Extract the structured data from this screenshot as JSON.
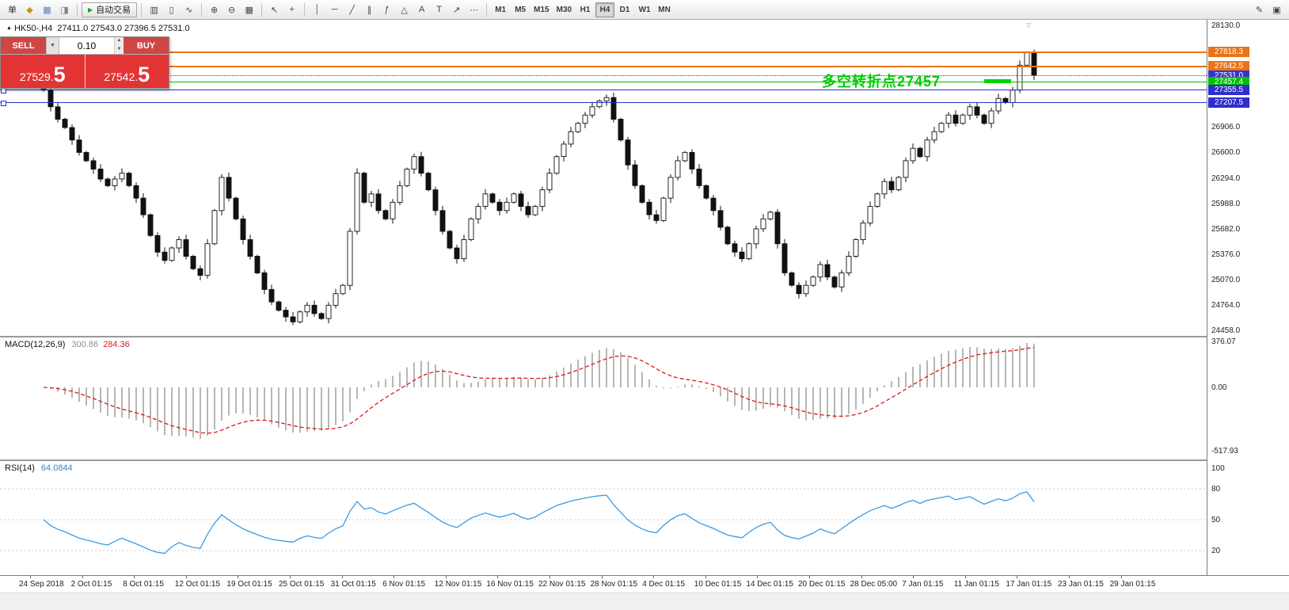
{
  "toolbar": {
    "icon_groups": [
      [
        {
          "n": "new-order-button",
          "g": "单",
          "c": "#333333"
        },
        {
          "n": "charts-window-icon",
          "g": "◆",
          "c": "#c8961e"
        },
        {
          "n": "profiles-icon",
          "g": "▦",
          "c": "#5b7fb4"
        },
        {
          "n": "navigator-icon",
          "g": "◨",
          "c": "#808080"
        }
      ],
      [
        {
          "n": "autotrading-button",
          "g": "▶",
          "c": "#18a018",
          "label": "自动交易"
        }
      ],
      [
        {
          "n": "bar-chart-icon",
          "g": "▥"
        },
        {
          "n": "candlestick-chart-icon",
          "g": "▯"
        },
        {
          "n": "line-chart-icon",
          "g": "∿"
        }
      ],
      [
        {
          "n": "zoom-in-button",
          "g": "⊕"
        },
        {
          "n": "zoom-out-button",
          "g": "⊖"
        },
        {
          "n": "tile-windows-icon",
          "g": "▦"
        }
      ],
      [
        {
          "n": "cursor-icon",
          "g": "↖"
        },
        {
          "n": "crosshair-icon",
          "g": "+"
        }
      ],
      [
        {
          "n": "vertical-line-icon",
          "g": "│"
        },
        {
          "n": "horizontal-line-icon",
          "g": "─"
        },
        {
          "n": "trendline-icon",
          "g": "╱"
        },
        {
          "n": "equidistant-channel-icon",
          "g": "∥"
        },
        {
          "n": "fibonacci-icon",
          "g": "ƒ"
        },
        {
          "n": "shapes-icon",
          "g": "△"
        },
        {
          "n": "text-icon",
          "g": "A"
        },
        {
          "n": "text-label-icon",
          "g": "T"
        },
        {
          "n": "arrows-icon",
          "g": "↗"
        },
        {
          "n": "more-tools-icon",
          "g": "⋯"
        }
      ]
    ],
    "timeframes": [
      "M1",
      "M5",
      "M15",
      "M30",
      "H1",
      "H4",
      "D1",
      "W1",
      "MN"
    ],
    "active_timeframe": "H4",
    "right_icons": [
      {
        "n": "edit-pencil-icon",
        "g": "✎"
      },
      {
        "n": "window-layout-icon",
        "g": "▣"
      }
    ]
  },
  "chart": {
    "header": {
      "marker": "▲",
      "title": "HK50-,H4",
      "values": "27411.0 27543.0 27396.5 27531.0"
    },
    "annotation": {
      "text": "多空转折点27457",
      "color": "#00cc00"
    },
    "shift_marker": "▽",
    "levels": [
      {
        "p": 27818.3,
        "t": "27818.3",
        "color": "#e8731a",
        "style": "solid",
        "w": 2
      },
      {
        "p": 27642.5,
        "t": "27642.5",
        "color": "#e8731a",
        "style": "solid",
        "w": 2
      },
      {
        "p": 27531.0,
        "t": "27531.0",
        "color": "#3535cd",
        "style": "dotted"
      },
      {
        "p": 27457.4,
        "t": "27457.4",
        "color": "#00c000",
        "style": "solid",
        "w": 1
      },
      {
        "p": 27355.5,
        "t": "27355.5",
        "color": "#2e2ecb",
        "style": "solid",
        "w": 1,
        "handles": true
      },
      {
        "p": 27207.5,
        "t": "27207.5",
        "color": "#2e2ecb",
        "style": "solid",
        "w": 1,
        "handles": true
      }
    ],
    "y_axis_labels": [
      {
        "p": 28130,
        "t": "28130.0"
      },
      {
        "p": 26906,
        "t": "26906.0"
      },
      {
        "p": 26600,
        "t": "26600.0"
      },
      {
        "p": 26294,
        "t": "26294.0"
      },
      {
        "p": 25988,
        "t": "25988.0"
      },
      {
        "p": 25682,
        "t": "25682.0"
      },
      {
        "p": 25376,
        "t": "25376.0"
      },
      {
        "p": 25070,
        "t": "25070.0"
      },
      {
        "p": 24764,
        "t": "24764.0"
      },
      {
        "p": 24458,
        "t": "24458.0"
      }
    ]
  },
  "trade_widget": {
    "sell_label": "SELL",
    "buy_label": "BUY",
    "volume": "0.10",
    "caret_icon": "▼",
    "spin_up_icon": "▲",
    "spin_down_icon": "▼",
    "sell_price": "27529.",
    "sell_price_frac": "5",
    "buy_price": "27542.",
    "buy_price_frac": "5"
  },
  "macd": {
    "title": "MACD(12,26,9)",
    "value1": "300.86",
    "value2": "284.36",
    "axis": [
      {
        "v": 376.07,
        "label": "376.07"
      },
      {
        "v": 0,
        "label": "0.00"
      },
      {
        "v": -517.93,
        "label": "-517.93"
      }
    ]
  },
  "rsi": {
    "title": "RSI(14)",
    "value": "64.0844",
    "axis": [
      {
        "v": 100,
        "label": "100"
      },
      {
        "v": 80,
        "label": "80"
      },
      {
        "v": 50,
        "label": "50"
      },
      {
        "v": 20,
        "label": "20"
      }
    ],
    "levels": [
      80,
      50,
      20
    ]
  },
  "chart_data": {
    "type": "candlestick",
    "symbol": "HK50-",
    "timeframe": "H4",
    "ohlc_last": {
      "open": 27411.0,
      "high": 27543.0,
      "low": 27396.5,
      "close": 27531.0
    },
    "y_range": [
      24458,
      28130
    ],
    "closes": [
      27350,
      27150,
      27000,
      26900,
      26750,
      26600,
      26500,
      26400,
      26280,
      26200,
      26280,
      26350,
      26200,
      26050,
      25850,
      25600,
      25400,
      25300,
      25450,
      25550,
      25350,
      25200,
      25120,
      25500,
      25900,
      26300,
      26050,
      25800,
      25550,
      25350,
      25150,
      24950,
      24800,
      24700,
      24620,
      24560,
      24680,
      24760,
      24660,
      24600,
      24760,
      24900,
      25000,
      25650,
      26350,
      26000,
      26100,
      25900,
      25800,
      26000,
      26200,
      26400,
      26550,
      26350,
      26150,
      25900,
      25650,
      25450,
      25320,
      25550,
      25800,
      25950,
      26100,
      26000,
      25900,
      26000,
      26100,
      25950,
      25850,
      25950,
      26150,
      26350,
      26550,
      26700,
      26850,
      26950,
      27050,
      27150,
      27220,
      27260,
      27000,
      26750,
      26450,
      26200,
      26000,
      25850,
      25780,
      26050,
      26300,
      26500,
      26600,
      26400,
      26200,
      26050,
      25900,
      25700,
      25500,
      25400,
      25320,
      25500,
      25680,
      25800,
      25880,
      25500,
      25150,
      25000,
      24900,
      25000,
      25100,
      25250,
      25100,
      24980,
      25150,
      25350,
      25550,
      25750,
      25950,
      26100,
      26250,
      26150,
      26300,
      26500,
      26650,
      26550,
      26750,
      26850,
      26950,
      27050,
      26950,
      27050,
      27150,
      27050,
      26950,
      27100,
      27250,
      27200,
      27350,
      27650,
      27800,
      27531
    ],
    "x_labels": [
      "24 Sep 2018",
      "2 Oct 01:15",
      "8 Oct 01:15",
      "12 Oct 01:15",
      "19 Oct 01:15",
      "25 Oct 01:15",
      "31 Oct 01:15",
      "6 Nov 01:15",
      "12 Nov 01:15",
      "16 Nov 01:15",
      "22 Nov 01:15",
      "28 Nov 01:15",
      "4 Dec 01:15",
      "10 Dec 01:15",
      "14 Dec 01:15",
      "20 Dec 01:15",
      "28 Dec 05:00",
      "7 Jan 01:15",
      "11 Jan 01:15",
      "17 Jan 01:15",
      "23 Jan 01:15",
      "29 Jan 01:15"
    ],
    "indicators": [
      {
        "name": "MACD",
        "params": [
          12,
          26,
          9
        ],
        "display": "300.86 284.36",
        "y_range": [
          -517.93,
          376.07
        ]
      },
      {
        "name": "RSI",
        "params": [
          14
        ],
        "display": "64.0844",
        "y_range": [
          0,
          100
        ]
      }
    ]
  }
}
